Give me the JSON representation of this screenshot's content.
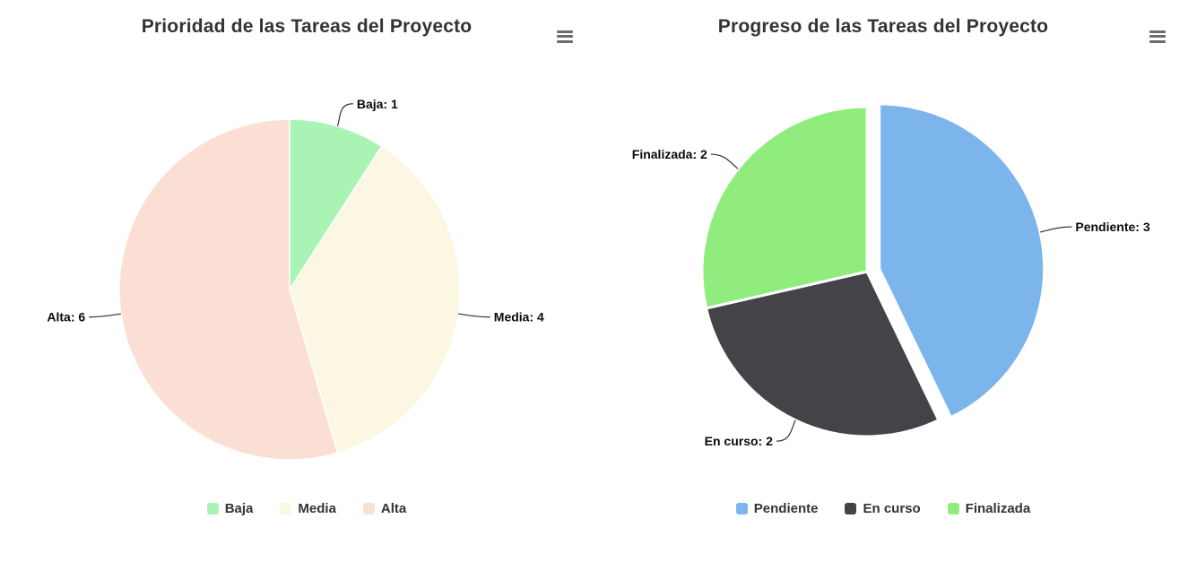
{
  "chart_data": [
    {
      "type": "pie",
      "title": "Prioridad de las Tareas del Proyecto",
      "total": 11,
      "start_angle": 0,
      "legend_position": "bottom",
      "data_labels": "outside-with-connectors",
      "slices": [
        {
          "label": "Baja",
          "value": 1,
          "color": "#a9f4b5",
          "callout": "Baja: 1",
          "sliced": false
        },
        {
          "label": "Media",
          "value": 4,
          "color": "#fcf7e2",
          "callout": "Media: 4",
          "sliced": false
        },
        {
          "label": "Alta",
          "value": 6,
          "color": "#fbdfd5",
          "callout": "Alta: 6",
          "sliced": false
        }
      ]
    },
    {
      "type": "pie",
      "title": "Progreso de las Tareas del Proyecto",
      "total": 7,
      "start_angle": 0,
      "legend_position": "bottom",
      "data_labels": "outside-with-connectors",
      "slices": [
        {
          "label": "Pendiente",
          "value": 3,
          "color": "#7cb5ec",
          "callout": "Pendiente: 3",
          "sliced": true
        },
        {
          "label": "En curso",
          "value": 2,
          "color": "#434348",
          "callout": "En curso: 2",
          "sliced": false
        },
        {
          "label": "Finalizada",
          "value": 2,
          "color": "#90ed7d",
          "callout": "Finalizada: 2",
          "sliced": false
        }
      ]
    }
  ],
  "ui": {
    "menu_icon": "hamburger-menu-icon",
    "title_color": "#333333",
    "legend_text_color": "#333333",
    "connector_color": "#333333"
  }
}
